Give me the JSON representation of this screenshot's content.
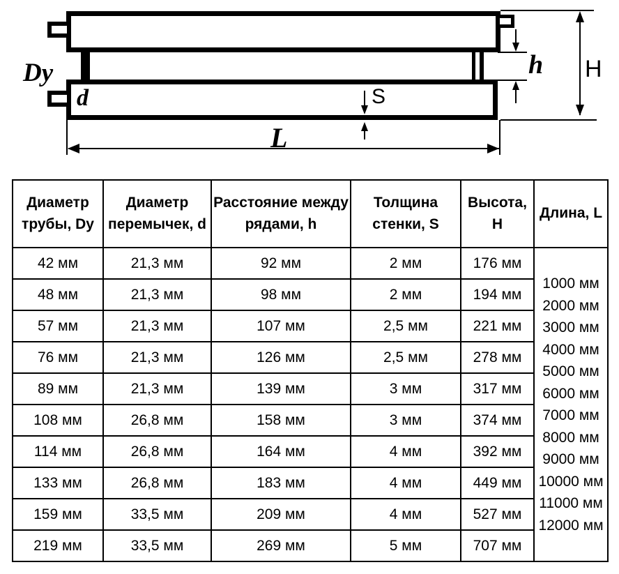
{
  "colors": {
    "ink": "#000000",
    "background": "#ffffff"
  },
  "diagram": {
    "labels": {
      "pipe_diameter": "Dy",
      "jumper_diameter": "d",
      "row_spacing": "h",
      "height": "H",
      "wall_thickness": "S",
      "length": "L"
    }
  },
  "table": {
    "headers": [
      "Диаметр трубы, Dy",
      "Диаметр перемычек, d",
      "Расстояние между рядами, h",
      "Толщина стенки, S",
      "Высота, H",
      "Длина, L"
    ],
    "rows": [
      [
        "42 мм",
        "21,3 мм",
        "92 мм",
        "2 мм",
        "176 мм"
      ],
      [
        "48 мм",
        "21,3 мм",
        "98 мм",
        "2 мм",
        "194 мм"
      ],
      [
        "57 мм",
        "21,3 мм",
        "107 мм",
        "2,5 мм",
        "221 мм"
      ],
      [
        "76 мм",
        "21,3 мм",
        "126 мм",
        "2,5 мм",
        "278 мм"
      ],
      [
        "89 мм",
        "21,3 мм",
        "139 мм",
        "3 мм",
        "317 мм"
      ],
      [
        "108 мм",
        "26,8 мм",
        "158 мм",
        "3 мм",
        "374 мм"
      ],
      [
        "114 мм",
        "26,8 мм",
        "164 мм",
        "4 мм",
        "392 мм"
      ],
      [
        "133 мм",
        "26,8 мм",
        "183 мм",
        "4 мм",
        "449 мм"
      ],
      [
        "159 мм",
        "33,5 мм",
        "209 мм",
        "4 мм",
        "527 мм"
      ],
      [
        "219 мм",
        "33,5 мм",
        "269 мм",
        "5 мм",
        "707 мм"
      ]
    ],
    "lengths": [
      "1000 мм",
      "2000 мм",
      "3000 мм",
      "4000 мм",
      "5000 мм",
      "6000 мм",
      "7000 мм",
      "8000 мм",
      "9000 мм",
      "10000 мм",
      "11000 мм",
      "12000 мм"
    ]
  }
}
